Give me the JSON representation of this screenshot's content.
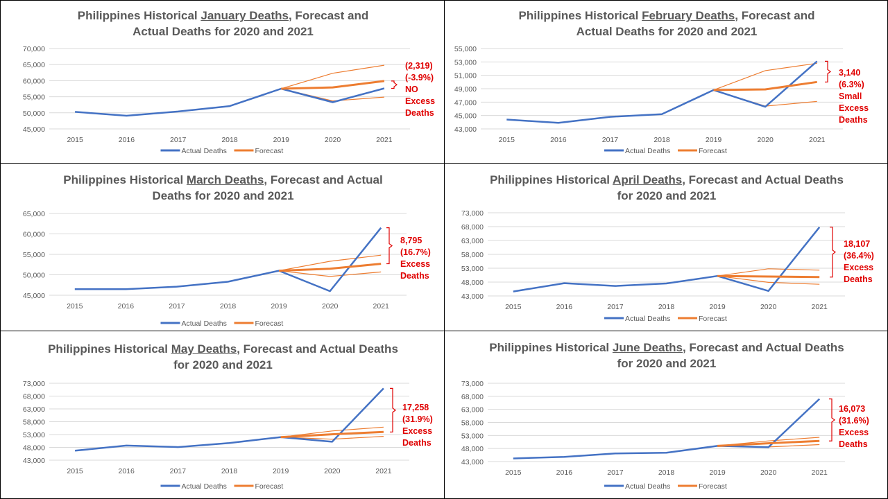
{
  "colors": {
    "actual": "#4472C4",
    "forecast": "#ED7D31",
    "annotation": "#E00000",
    "grid": "#D9D9D9",
    "text": "#595959"
  },
  "chart_data": [
    {
      "type": "line",
      "title": {
        "pre": "Philippines Historical ",
        "underlined": "January Deaths",
        "post": ", Forecast and Actual Deaths for 2020 and 2021"
      },
      "categories": [
        "2015",
        "2016",
        "2017",
        "2018",
        "2019",
        "2020",
        "2021"
      ],
      "ylim": [
        45000,
        70000
      ],
      "yticks": [
        "45,000",
        "50,000",
        "55,000",
        "60,000",
        "65,000",
        "70,000"
      ],
      "series": [
        {
          "name": "Actual Deaths",
          "values": [
            50300,
            49100,
            50400,
            52100,
            57500,
            53300,
            57600
          ]
        },
        {
          "name": "Forecast",
          "values": [
            null,
            null,
            null,
            null,
            57500,
            57900,
            59900
          ]
        }
      ],
      "bounds": {
        "upper": [
          null,
          null,
          null,
          null,
          57500,
          62300,
          64800
        ],
        "lower": [
          null,
          null,
          null,
          null,
          57500,
          53700,
          54900
        ]
      },
      "legend": [
        "Actual Deaths",
        "Forecast"
      ],
      "legend_position": "bottom",
      "annotation": [
        "(2,319)",
        "(-3.9%)",
        "NO",
        "Excess",
        "Deaths"
      ]
    },
    {
      "type": "line",
      "title": {
        "pre": "Philippines Historical ",
        "underlined": "February Deaths",
        "post": ", Forecast and Actual Deaths for 2020 and 2021"
      },
      "categories": [
        "2015",
        "2016",
        "2017",
        "2018",
        "2019",
        "2020",
        "2021"
      ],
      "ylim": [
        43000,
        55000
      ],
      "yticks": [
        "43,000",
        "45,000",
        "47,000",
        "49,000",
        "51,000",
        "53,000",
        "55,000"
      ],
      "series": [
        {
          "name": "Actual Deaths",
          "values": [
            44400,
            43900,
            44800,
            45200,
            48800,
            46300,
            53100
          ]
        },
        {
          "name": "Forecast",
          "values": [
            null,
            null,
            null,
            null,
            48800,
            48900,
            50000
          ]
        }
      ],
      "bounds": {
        "upper": [
          null,
          null,
          null,
          null,
          48800,
          51700,
          52800
        ],
        "lower": [
          null,
          null,
          null,
          null,
          48800,
          46400,
          47100
        ]
      },
      "legend": [
        "Actual Deaths",
        "Forecast"
      ],
      "legend_position": "bottom",
      "annotation": [
        "3,140",
        "(6.3%)",
        "Small",
        "Excess",
        "Deaths"
      ]
    },
    {
      "type": "line",
      "title": {
        "pre": "Philippines Historical ",
        "underlined": "March Deaths",
        "post": ", Forecast and Actual Deaths for 2020 and 2021"
      },
      "categories": [
        "2015",
        "2016",
        "2017",
        "2018",
        "2019",
        "2020",
        "2021"
      ],
      "ylim": [
        45000,
        65000
      ],
      "yticks": [
        "45,000",
        "50,000",
        "55,000",
        "60,000",
        "65,000"
      ],
      "series": [
        {
          "name": "Actual Deaths",
          "values": [
            46500,
            46500,
            47100,
            48300,
            51000,
            46000,
            61500
          ]
        },
        {
          "name": "Forecast",
          "values": [
            null,
            null,
            null,
            null,
            51000,
            51500,
            52700
          ]
        }
      ],
      "bounds": {
        "upper": [
          null,
          null,
          null,
          null,
          51000,
          53300,
          54800
        ],
        "lower": [
          null,
          null,
          null,
          null,
          51000,
          49600,
          50700
        ]
      },
      "legend": [
        "Actual Deaths",
        "Forecast"
      ],
      "legend_position": "bottom",
      "annotation": [
        "8,795",
        "(16.7%)",
        "Excess",
        "Deaths"
      ]
    },
    {
      "type": "line",
      "title": {
        "pre": "Philippines Historical ",
        "underlined": "April Deaths",
        "post": ", Forecast and Actual Deaths for 2020 and 2021"
      },
      "categories": [
        "2015",
        "2016",
        "2017",
        "2018",
        "2019",
        "2020",
        "2021"
      ],
      "ylim": [
        43000,
        73000
      ],
      "yticks": [
        "43,000",
        "48,000",
        "53,000",
        "58,000",
        "63,000",
        "68,000",
        "73,000"
      ],
      "series": [
        {
          "name": "Actual Deaths",
          "values": [
            44600,
            47600,
            46600,
            47500,
            50200,
            44800,
            67800
          ]
        },
        {
          "name": "Forecast",
          "values": [
            null,
            null,
            null,
            null,
            50200,
            50000,
            49800
          ]
        }
      ],
      "bounds": {
        "upper": [
          null,
          null,
          null,
          null,
          50200,
          52800,
          52300
        ],
        "lower": [
          null,
          null,
          null,
          null,
          50200,
          47900,
          47200
        ]
      },
      "legend": [
        "Actual Deaths",
        "Forecast"
      ],
      "legend_position": "bottom",
      "annotation": [
        "18,107",
        "(36.4%)",
        "Excess",
        "Deaths"
      ]
    },
    {
      "type": "line",
      "title": {
        "pre": "Philippines Historical ",
        "underlined": "May Deaths",
        "post": ", Forecast and Actual Deaths for 2020 and 2021"
      },
      "categories": [
        "2015",
        "2016",
        "2017",
        "2018",
        "2019",
        "2020",
        "2021"
      ],
      "ylim": [
        43000,
        73000
      ],
      "yticks": [
        "43,000",
        "48,000",
        "53,000",
        "58,000",
        "63,000",
        "68,000",
        "73,000"
      ],
      "series": [
        {
          "name": "Actual Deaths",
          "values": [
            46700,
            48700,
            48100,
            49700,
            52000,
            50200,
            71000
          ]
        },
        {
          "name": "Forecast",
          "values": [
            null,
            null,
            null,
            null,
            52000,
            53100,
            54000
          ]
        }
      ],
      "bounds": {
        "upper": [
          null,
          null,
          null,
          null,
          52000,
          54400,
          55900
        ],
        "lower": [
          null,
          null,
          null,
          null,
          52000,
          51200,
          52300
        ]
      },
      "legend": [
        "Actual Deaths",
        "Forecast"
      ],
      "legend_position": "bottom",
      "annotation": [
        "17,258",
        "(31.9%)",
        "Excess",
        "Deaths"
      ]
    },
    {
      "type": "line",
      "title": {
        "pre": "Philippines Historical ",
        "underlined": "June Deaths",
        "post": ", Forecast and Actual Deaths for 2020 and 2021"
      },
      "categories": [
        "2015",
        "2016",
        "2017",
        "2018",
        "2019",
        "2020",
        "2021"
      ],
      "ylim": [
        43000,
        73000
      ],
      "yticks": [
        "43,000",
        "48,000",
        "53,000",
        "58,000",
        "63,000",
        "68,000",
        "73,000"
      ],
      "series": [
        {
          "name": "Actual Deaths",
          "values": [
            44200,
            44800,
            46100,
            46400,
            49000,
            48500,
            67000
          ]
        },
        {
          "name": "Forecast",
          "values": [
            null,
            null,
            null,
            null,
            49000,
            50000,
            50900
          ]
        }
      ],
      "bounds": {
        "upper": [
          null,
          null,
          null,
          null,
          49000,
          50900,
          52300
        ],
        "lower": [
          null,
          null,
          null,
          null,
          49000,
          48600,
          49500
        ]
      },
      "legend": [
        "Actual Deaths",
        "Forecast"
      ],
      "legend_position": "bottom",
      "annotation": [
        "16,073",
        "(31.6%)",
        "Excess",
        "Deaths"
      ]
    }
  ]
}
